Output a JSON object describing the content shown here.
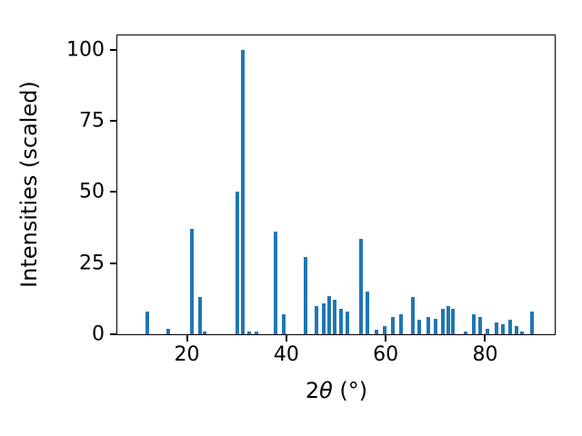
{
  "chart_data": {
    "type": "bar",
    "title": "",
    "xlabel": "2θ (°)",
    "xlabel_parts": {
      "prefix": "2",
      "theta": "θ",
      "suffix": " (°)"
    },
    "ylabel": "Intensities (scaled)",
    "xlim": [
      6,
      94
    ],
    "ylim": [
      0,
      105
    ],
    "xticks": [
      20,
      40,
      60,
      80
    ],
    "yticks": [
      0,
      25,
      50,
      75,
      100
    ],
    "grid": false,
    "legend": "none",
    "bar_color": "#1f77b4",
    "peaks": [
      [
        12.0,
        8
      ],
      [
        16.2,
        2
      ],
      [
        21.0,
        37
      ],
      [
        22.6,
        13
      ],
      [
        23.6,
        1
      ],
      [
        30.1,
        50
      ],
      [
        31.3,
        100
      ],
      [
        32.6,
        1
      ],
      [
        34.0,
        1
      ],
      [
        37.8,
        36
      ],
      [
        39.5,
        7
      ],
      [
        43.8,
        27
      ],
      [
        46.0,
        10
      ],
      [
        47.5,
        11
      ],
      [
        48.7,
        13.5
      ],
      [
        49.8,
        12
      ],
      [
        51.0,
        9
      ],
      [
        52.2,
        8
      ],
      [
        55.0,
        33.5
      ],
      [
        56.3,
        15
      ],
      [
        58.2,
        1.5
      ],
      [
        59.8,
        3
      ],
      [
        61.5,
        6
      ],
      [
        63.0,
        7
      ],
      [
        65.5,
        13
      ],
      [
        66.8,
        5
      ],
      [
        68.5,
        6
      ],
      [
        70.0,
        5.5
      ],
      [
        71.5,
        9
      ],
      [
        72.6,
        10
      ],
      [
        73.6,
        9
      ],
      [
        76.0,
        1
      ],
      [
        77.8,
        7
      ],
      [
        79.0,
        6
      ],
      [
        80.5,
        2
      ],
      [
        82.3,
        4
      ],
      [
        83.5,
        3.5
      ],
      [
        85.0,
        5
      ],
      [
        86.3,
        3
      ],
      [
        87.5,
        1
      ],
      [
        89.5,
        8
      ]
    ]
  }
}
